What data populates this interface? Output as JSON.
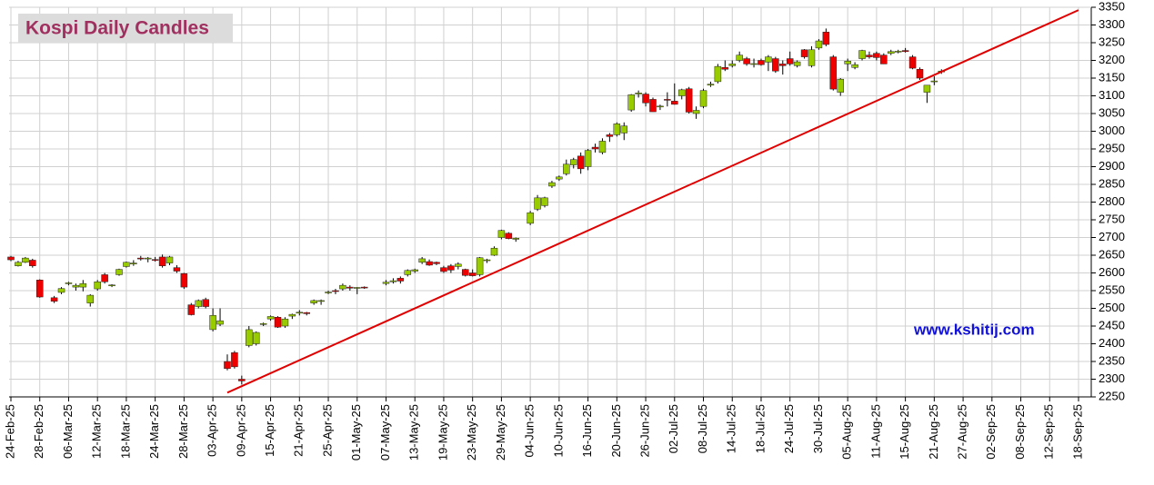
{
  "chart_data": {
    "type": "candlestick",
    "title": "Kospi Daily Candles",
    "annotation": "www.kshitij.com",
    "categories": [
      "24-Feb-25",
      null,
      null,
      null,
      "28-Feb-25",
      null,
      null,
      null,
      "06-Mar-25",
      null,
      null,
      null,
      "12-Mar-25",
      null,
      null,
      null,
      "18-Mar-25",
      null,
      null,
      null,
      "24-Mar-25",
      null,
      null,
      null,
      "28-Mar-25",
      null,
      null,
      null,
      "03-Apr-25",
      null,
      null,
      null,
      "09-Apr-25",
      null,
      null,
      null,
      "15-Apr-25",
      null,
      null,
      null,
      "21-Apr-25",
      null,
      null,
      null,
      "25-Apr-25",
      null,
      null,
      null,
      "01-May-25",
      null,
      null,
      null,
      "07-May-25",
      null,
      null,
      null,
      "13-May-25",
      null,
      null,
      null,
      "19-May-25",
      null,
      null,
      null,
      "23-May-25",
      null,
      null,
      null,
      "29-May-25",
      null,
      null,
      null,
      "04-Jun-25",
      null,
      null,
      null,
      "10-Jun-25",
      null,
      null,
      null,
      "16-Jun-25",
      null,
      null,
      null,
      "20-Jun-25",
      null,
      null,
      null,
      "26-Jun-25",
      null,
      null,
      null,
      "02-Jul-25",
      null,
      null,
      null,
      "08-Jul-25",
      null,
      null,
      null,
      "14-Jul-25",
      null,
      null,
      null,
      "18-Jul-25",
      null,
      null,
      null,
      "24-Jul-25",
      null,
      null,
      null,
      "30-Jul-25",
      null,
      null,
      null,
      "05-Aug-25",
      null,
      null,
      null,
      "11-Aug-25",
      null,
      null,
      null,
      "15-Aug-25",
      null,
      null,
      null,
      "21-Aug-25",
      null,
      null,
      null,
      "27-Aug-25",
      null,
      null,
      null,
      "02-Sep-25",
      null,
      null,
      null,
      "08-Sep-25",
      null,
      null,
      null,
      "12-Sep-25",
      null,
      null,
      null,
      "18-Sep-25"
    ],
    "open": [
      2645,
      2620,
      2630,
      2636,
      2580,
      null,
      2530,
      2545,
      2570,
      2560,
      2560,
      2515,
      2555,
      2595,
      2565,
      2595,
      2618,
      2625,
      2642,
      2640,
      2638,
      2645,
      2628,
      2615,
      2598,
      2510,
      2505,
      2525,
      2440,
      2455,
      2350,
      2375,
      2300,
      2395,
      2400,
      2455,
      2470,
      2475,
      2450,
      2478,
      2488,
      2488,
      2515,
      2520,
      2545,
      2550,
      2555,
      2560,
      2558,
      2560,
      null,
      null,
      2570,
      2575,
      2585,
      2595,
      2605,
      2630,
      2632,
      2630,
      2615,
      2620,
      2618,
      2610,
      2600,
      2595,
      2635,
      2650,
      2700,
      2712,
      2695,
      null,
      2740,
      2780,
      2790,
      2845,
      2865,
      2880,
      2905,
      2930,
      2900,
      2955,
      2940,
      2990,
      2990,
      2995,
      3060,
      3105,
      3105,
      3090,
      3070,
      3090,
      3085,
      3100,
      3120,
      3050,
      3070,
      3130,
      3140,
      3180,
      3185,
      3200,
      3205,
      3190,
      3200,
      3195,
      3205,
      3190,
      3205,
      3185,
      3230,
      3185,
      3235,
      3280,
      3210,
      3110,
      3190,
      3180,
      3205,
      3215,
      3220,
      3215,
      3220,
      3225,
      3228,
      3210,
      3175,
      3110,
      3140,
      3168,
      null,
      null,
      null,
      null,
      null,
      null,
      null,
      null,
      null,
      null,
      null,
      null,
      null,
      null,
      null,
      null,
      null,
      null,
      null
    ],
    "high": [
      2648,
      2634,
      2645,
      2640,
      2582,
      null,
      2535,
      2560,
      2575,
      2570,
      2580,
      2540,
      2580,
      2600,
      2568,
      2612,
      2632,
      2636,
      2648,
      2645,
      2645,
      2652,
      2648,
      2622,
      2600,
      2515,
      2525,
      2530,
      2500,
      2500,
      2370,
      2380,
      2310,
      2450,
      2435,
      2460,
      2480,
      2478,
      2475,
      2485,
      2495,
      2490,
      2525,
      2525,
      2550,
      2555,
      2570,
      2565,
      2560,
      2562,
      null,
      null,
      2580,
      2585,
      2590,
      2610,
      2612,
      2645,
      2638,
      2632,
      2620,
      2625,
      2630,
      2612,
      2610,
      2645,
      2640,
      2675,
      2722,
      2715,
      2700,
      null,
      2775,
      2820,
      2815,
      2860,
      2875,
      2920,
      2925,
      2940,
      2950,
      2965,
      2980,
      2995,
      3025,
      3025,
      3105,
      3115,
      3110,
      3095,
      3075,
      3110,
      3135,
      3120,
      3125,
      3070,
      3120,
      3140,
      3190,
      3200,
      3200,
      3225,
      3210,
      3205,
      3205,
      3215,
      3210,
      3200,
      3225,
      3200,
      3232,
      3240,
      3260,
      3290,
      3215,
      3150,
      3205,
      3195,
      3230,
      3225,
      3225,
      3220,
      3230,
      3230,
      3235,
      3215,
      3180,
      3130,
      3155,
      3175,
      null,
      null,
      null,
      null,
      null,
      null,
      null,
      null,
      null,
      null,
      null,
      null,
      null,
      null,
      null,
      null,
      null,
      null,
      null
    ],
    "low": [
      2633,
      2618,
      2628,
      2615,
      2530,
      null,
      2515,
      2540,
      2565,
      2550,
      2548,
      2505,
      2550,
      2570,
      2560,
      2592,
      2615,
      2620,
      2635,
      2630,
      2632,
      2615,
      2622,
      2600,
      2555,
      2480,
      2500,
      2500,
      2435,
      2450,
      2325,
      2330,
      2285,
      2390,
      2395,
      2450,
      2465,
      2445,
      2445,
      2470,
      2480,
      2480,
      2510,
      2510,
      2540,
      2540,
      2550,
      2550,
      2540,
      2555,
      null,
      null,
      2565,
      2570,
      2570,
      2590,
      2600,
      2625,
      2620,
      2622,
      2600,
      2600,
      2610,
      2590,
      2590,
      2590,
      2628,
      2648,
      2695,
      2695,
      2688,
      null,
      2735,
      2775,
      2785,
      2840,
      2860,
      2875,
      2895,
      2880,
      2890,
      2940,
      2935,
      2970,
      2985,
      2975,
      3055,
      3095,
      3070,
      3055,
      3060,
      3070,
      3075,
      3090,
      3050,
      3035,
      3065,
      3125,
      3135,
      3170,
      3180,
      3195,
      3185,
      3180,
      3185,
      3170,
      3165,
      3160,
      3185,
      3180,
      3205,
      3180,
      3230,
      3240,
      3115,
      3100,
      3170,
      3175,
      3200,
      3205,
      3200,
      3190,
      3215,
      3220,
      3222,
      3175,
      3145,
      3080,
      3130,
      3162,
      null,
      null,
      null,
      null,
      null,
      null,
      null,
      null,
      null,
      null,
      null,
      null,
      null,
      null,
      null,
      null,
      null,
      null,
      null
    ],
    "close": [
      2637,
      2630,
      2642,
      2620,
      2532,
      null,
      2520,
      2556,
      2572,
      2565,
      2570,
      2537,
      2575,
      2575,
      2566,
      2610,
      2630,
      2628,
      2640,
      2642,
      2636,
      2620,
      2645,
      2605,
      2560,
      2482,
      2522,
      2505,
      2480,
      2465,
      2330,
      2335,
      2295,
      2440,
      2432,
      2457,
      2477,
      2447,
      2470,
      2483,
      2489,
      2485,
      2522,
      2522,
      2546,
      2548,
      2565,
      2557,
      2559,
      2559,
      null,
      null,
      2574,
      2578,
      2577,
      2607,
      2609,
      2640,
      2622,
      2626,
      2604,
      2608,
      2625,
      2593,
      2592,
      2643,
      2637,
      2670,
      2720,
      2697,
      2698,
      null,
      2770,
      2812,
      2812,
      2855,
      2871,
      2907,
      2920,
      2894,
      2946,
      2950,
      2972,
      2985,
      3021,
      3015,
      3103,
      3108,
      3080,
      3055,
      3071,
      3089,
      3076,
      3117,
      3054,
      3059,
      3115,
      3133,
      3183,
      3175,
      3190,
      3215,
      3190,
      3191,
      3188,
      3210,
      3170,
      3185,
      3190,
      3196,
      3210,
      3230,
      3255,
      3245,
      3119,
      3147,
      3198,
      3188,
      3228,
      3210,
      3208,
      3190,
      3225,
      3226,
      3225,
      3178,
      3150,
      3130,
      3142,
      3170,
      null,
      null,
      null,
      null,
      null,
      null,
      null,
      null,
      null,
      null,
      null,
      null,
      null,
      null,
      null,
      null,
      null,
      null,
      null
    ],
    "up_color": "#99cc00",
    "down_color": "#ee0000",
    "trendline": {
      "x": [
        30,
        148
      ],
      "y": [
        2262,
        3342
      ],
      "color": "#e00000"
    },
    "ylim": [
      2250,
      3350
    ],
    "yticks": [
      2250,
      2300,
      2350,
      2400,
      2450,
      2500,
      2550,
      2600,
      2650,
      2700,
      2750,
      2800,
      2850,
      2900,
      2950,
      3000,
      3050,
      3100,
      3150,
      3200,
      3250,
      3300,
      3350
    ],
    "grid": true
  }
}
